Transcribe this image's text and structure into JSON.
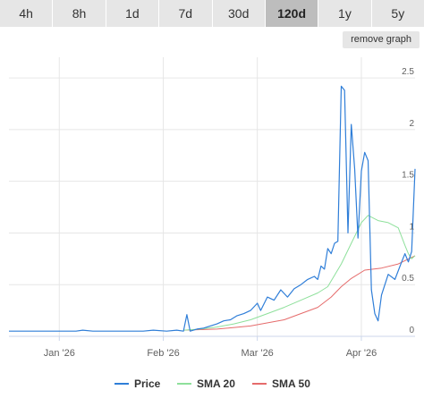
{
  "tabs": [
    {
      "label": "4h",
      "active": false
    },
    {
      "label": "8h",
      "active": false
    },
    {
      "label": "1d",
      "active": false
    },
    {
      "label": "7d",
      "active": false
    },
    {
      "label": "30d",
      "active": false
    },
    {
      "label": "120d",
      "active": true
    },
    {
      "label": "1y",
      "active": false
    },
    {
      "label": "5y",
      "active": false
    }
  ],
  "remove_graph_label": "remove graph",
  "chart_data": {
    "type": "line",
    "title": "",
    "xlabel": "",
    "ylabel": "",
    "x_range": [
      "2025-12-17",
      "2026-04-17"
    ],
    "ylim": [
      0,
      2.7
    ],
    "y_ticks": [
      0,
      0.5,
      1,
      1.5,
      2,
      2.5
    ],
    "y_tick_labels": [
      "0",
      "0.5",
      "1",
      "1.5",
      "2",
      "2.5"
    ],
    "x_ticks": [
      {
        "date": "2026-01-01",
        "label": "Jan '26"
      },
      {
        "date": "2026-02-01",
        "label": "Feb '26"
      },
      {
        "date": "2026-03-01",
        "label": "Mar '26"
      },
      {
        "date": "2026-04-01",
        "label": "Apr '26"
      }
    ],
    "grid": {
      "x": true,
      "y": true
    },
    "legend_position": "bottom-center",
    "series": [
      {
        "name": "Price",
        "color": "#2f7ed8",
        "points": [
          [
            "2025-12-17",
            0.05
          ],
          [
            "2025-12-22",
            0.05
          ],
          [
            "2025-12-27",
            0.05
          ],
          [
            "2026-01-01",
            0.05
          ],
          [
            "2026-01-06",
            0.05
          ],
          [
            "2026-01-08",
            0.06
          ],
          [
            "2026-01-11",
            0.05
          ],
          [
            "2026-01-16",
            0.05
          ],
          [
            "2026-01-21",
            0.05
          ],
          [
            "2026-01-26",
            0.05
          ],
          [
            "2026-01-29",
            0.06
          ],
          [
            "2026-02-02",
            0.05
          ],
          [
            "2026-02-05",
            0.06
          ],
          [
            "2026-02-07",
            0.05
          ],
          [
            "2026-02-08",
            0.21
          ],
          [
            "2026-02-09",
            0.05
          ],
          [
            "2026-02-11",
            0.07
          ],
          [
            "2026-02-13",
            0.08
          ],
          [
            "2026-02-15",
            0.1
          ],
          [
            "2026-02-17",
            0.12
          ],
          [
            "2026-02-19",
            0.15
          ],
          [
            "2026-02-21",
            0.16
          ],
          [
            "2026-02-23",
            0.2
          ],
          [
            "2026-02-25",
            0.22
          ],
          [
            "2026-02-27",
            0.25
          ],
          [
            "2026-03-01",
            0.32
          ],
          [
            "2026-03-02",
            0.25
          ],
          [
            "2026-03-04",
            0.38
          ],
          [
            "2026-03-06",
            0.35
          ],
          [
            "2026-03-08",
            0.45
          ],
          [
            "2026-03-10",
            0.38
          ],
          [
            "2026-03-12",
            0.46
          ],
          [
            "2026-03-14",
            0.5
          ],
          [
            "2026-03-16",
            0.55
          ],
          [
            "2026-03-18",
            0.58
          ],
          [
            "2026-03-19",
            0.55
          ],
          [
            "2026-03-20",
            0.68
          ],
          [
            "2026-03-21",
            0.65
          ],
          [
            "2026-03-22",
            0.85
          ],
          [
            "2026-03-23",
            0.8
          ],
          [
            "2026-03-24",
            0.9
          ],
          [
            "2026-03-25",
            0.92
          ],
          [
            "2026-03-26",
            2.42
          ],
          [
            "2026-03-27",
            2.38
          ],
          [
            "2026-03-28",
            1.0
          ],
          [
            "2026-03-29",
            2.05
          ],
          [
            "2026-03-30",
            1.62
          ],
          [
            "2026-03-31",
            0.95
          ],
          [
            "2026-04-01",
            1.6
          ],
          [
            "2026-04-02",
            1.78
          ],
          [
            "2026-04-03",
            1.7
          ],
          [
            "2026-04-04",
            0.45
          ],
          [
            "2026-04-05",
            0.22
          ],
          [
            "2026-04-06",
            0.15
          ],
          [
            "2026-04-07",
            0.4
          ],
          [
            "2026-04-09",
            0.6
          ],
          [
            "2026-04-11",
            0.55
          ],
          [
            "2026-04-13",
            0.72
          ],
          [
            "2026-04-14",
            0.8
          ],
          [
            "2026-04-15",
            0.72
          ],
          [
            "2026-04-16",
            0.82
          ],
          [
            "2026-04-17",
            1.62
          ]
        ]
      },
      {
        "name": "SMA 20",
        "color": "#8ee09b",
        "points": [
          [
            "2026-02-07",
            0.06
          ],
          [
            "2026-02-12",
            0.07
          ],
          [
            "2026-02-17",
            0.09
          ],
          [
            "2026-02-22",
            0.12
          ],
          [
            "2026-02-27",
            0.16
          ],
          [
            "2026-03-04",
            0.22
          ],
          [
            "2026-03-09",
            0.28
          ],
          [
            "2026-03-14",
            0.35
          ],
          [
            "2026-03-19",
            0.42
          ],
          [
            "2026-03-22",
            0.48
          ],
          [
            "2026-03-26",
            0.7
          ],
          [
            "2026-03-29",
            0.9
          ],
          [
            "2026-04-01",
            1.1
          ],
          [
            "2026-04-03",
            1.17
          ],
          [
            "2026-04-06",
            1.12
          ],
          [
            "2026-04-09",
            1.1
          ],
          [
            "2026-04-12",
            1.05
          ],
          [
            "2026-04-14",
            0.88
          ],
          [
            "2026-04-15",
            0.8
          ],
          [
            "2026-04-16",
            0.75
          ],
          [
            "2026-04-17",
            0.78
          ]
        ]
      },
      {
        "name": "SMA 50",
        "color": "#e56b6b",
        "points": [
          [
            "2026-02-07",
            0.06
          ],
          [
            "2026-02-17",
            0.07
          ],
          [
            "2026-02-27",
            0.1
          ],
          [
            "2026-03-09",
            0.16
          ],
          [
            "2026-03-19",
            0.28
          ],
          [
            "2026-03-23",
            0.38
          ],
          [
            "2026-03-26",
            0.48
          ],
          [
            "2026-03-29",
            0.56
          ],
          [
            "2026-04-02",
            0.64
          ],
          [
            "2026-04-07",
            0.66
          ],
          [
            "2026-04-12",
            0.7
          ],
          [
            "2026-04-17",
            0.78
          ]
        ]
      }
    ]
  }
}
